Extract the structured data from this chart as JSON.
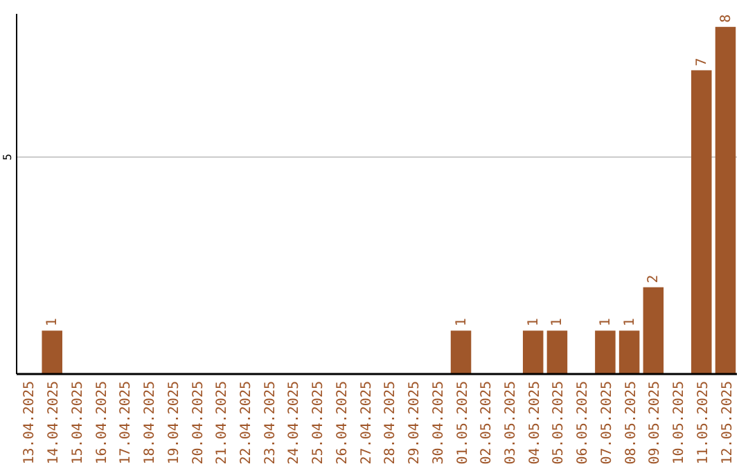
{
  "chart_data": {
    "type": "bar",
    "categories": [
      "13.04.2025",
      "14.04.2025",
      "15.04.2025",
      "16.04.2025",
      "17.04.2025",
      "18.04.2025",
      "19.04.2025",
      "20.04.2025",
      "21.04.2025",
      "22.04.2025",
      "23.04.2025",
      "24.04.2025",
      "25.04.2025",
      "26.04.2025",
      "27.04.2025",
      "28.04.2025",
      "29.04.2025",
      "30.04.2025",
      "01.05.2025",
      "02.05.2025",
      "03.05.2025",
      "04.05.2025",
      "05.05.2025",
      "06.05.2025",
      "07.05.2025",
      "08.05.2025",
      "09.05.2025",
      "10.05.2025",
      "11.05.2025",
      "12.05.2025"
    ],
    "values": [
      0,
      1,
      0,
      0,
      0,
      0,
      0,
      0,
      0,
      0,
      0,
      0,
      0,
      0,
      0,
      0,
      0,
      0,
      1,
      0,
      0,
      1,
      1,
      0,
      1,
      1,
      2,
      0,
      7,
      8
    ],
    "value_labels": [
      null,
      "1",
      null,
      null,
      null,
      null,
      null,
      null,
      null,
      null,
      null,
      null,
      null,
      null,
      null,
      null,
      null,
      null,
      "1",
      null,
      null,
      "1",
      "1",
      null,
      "1",
      "1",
      "2",
      null,
      "7",
      "8"
    ],
    "color": "#a0572a",
    "ylim": [
      0,
      8.3
    ],
    "yticks": [
      5
    ],
    "grid": "y"
  }
}
